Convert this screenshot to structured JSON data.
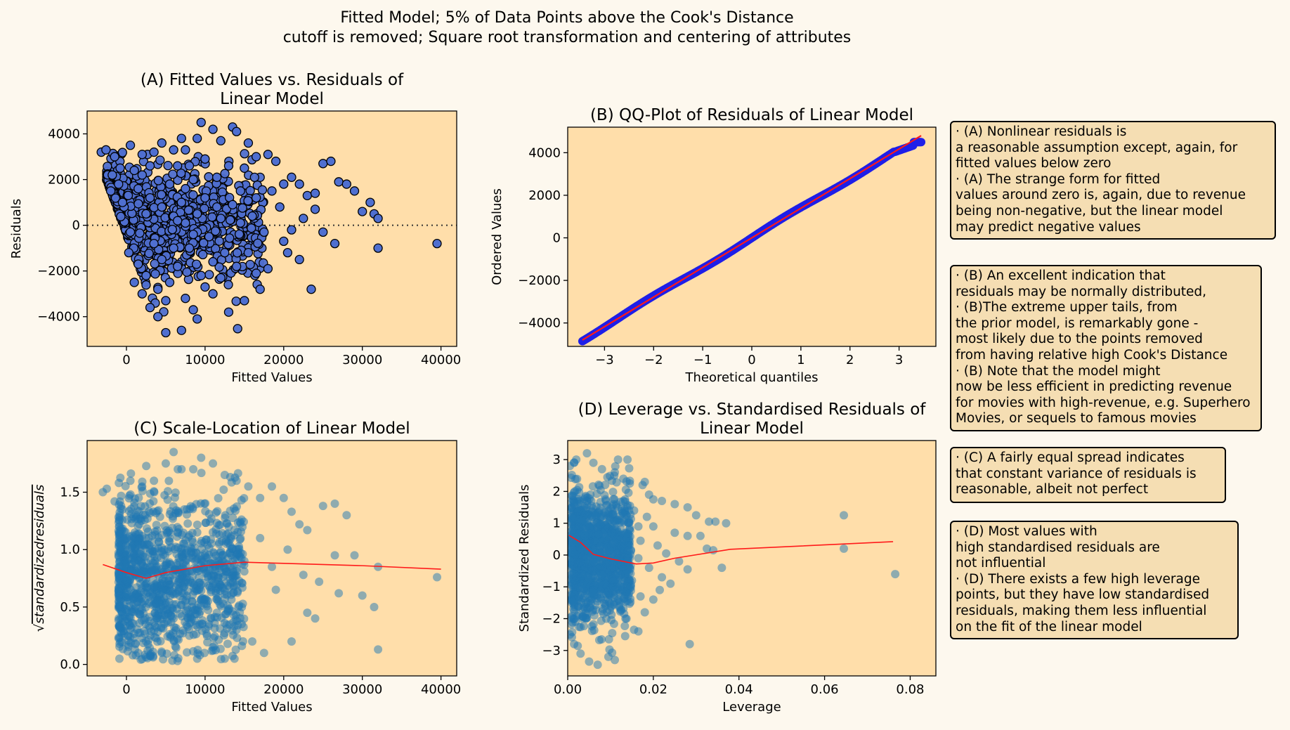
{
  "figure": {
    "suptitle_lines": [
      "Fitted Model; 5% of Data Points above the Cook's Distance",
      "cutoff is removed; Square root transformation and centering of attributes"
    ]
  },
  "colors": {
    "background": "#fdf8ee",
    "axes_face": "#ffdeaa",
    "note_face": "#f5deb3",
    "scatter_blue": "#4f6fd0",
    "qq_blue": "#1f1fe8",
    "tab_blue": "#1f77b4",
    "fit_red": "#ff1a1a"
  },
  "chart_data": [
    {
      "id": "A",
      "type": "scatter",
      "title_lines": [
        "(A) Fitted Values vs. Residuals of",
        "Linear Model"
      ],
      "xlabel": "Fitted Values",
      "ylabel": "Residuals",
      "xlim": [
        -5000,
        42000
      ],
      "ylim": [
        -5300,
        5000
      ],
      "xticks": [
        0,
        10000,
        20000,
        30000,
        40000
      ],
      "xtick_labels": [
        "0",
        "10000",
        "20000",
        "30000",
        "40000"
      ],
      "yticks": [
        -4000,
        -2000,
        0,
        2000,
        4000
      ],
      "ytick_labels": [
        "−4000",
        "−2000",
        "0",
        "2000",
        "4000"
      ],
      "reference_line": {
        "y": 0,
        "style": "dotted"
      },
      "marker": "circle-edged",
      "points": [
        [
          -3200,
          3200
        ],
        [
          -2600,
          3300
        ],
        [
          -1500,
          3000
        ],
        [
          -800,
          2500
        ],
        [
          500,
          3500
        ],
        [
          2000,
          3100
        ],
        [
          3500,
          3200
        ],
        [
          4500,
          3600
        ],
        [
          6000,
          3300
        ],
        [
          7000,
          3800
        ],
        [
          7500,
          3300
        ],
        [
          9000,
          3800
        ],
        [
          9500,
          4500
        ],
        [
          11000,
          4200
        ],
        [
          12000,
          3700
        ],
        [
          13500,
          4300
        ],
        [
          14000,
          4100
        ],
        [
          15500,
          3600
        ],
        [
          16500,
          3000
        ],
        [
          18000,
          3100
        ],
        [
          19000,
          2800
        ],
        [
          20000,
          1800
        ],
        [
          21000,
          2100
        ],
        [
          22000,
          1800
        ],
        [
          23000,
          1300
        ],
        [
          24000,
          1400
        ],
        [
          25000,
          2700
        ],
        [
          26000,
          2800
        ],
        [
          27000,
          1900
        ],
        [
          28000,
          1800
        ],
        [
          29000,
          1500
        ],
        [
          30000,
          600
        ],
        [
          31000,
          1000
        ],
        [
          31500,
          500
        ],
        [
          32000,
          300
        ],
        [
          32000,
          -1000
        ],
        [
          26500,
          -800
        ],
        [
          39500,
          -800
        ],
        [
          23500,
          -2800
        ],
        [
          25000,
          -300
        ],
        [
          22000,
          -1500
        ],
        [
          20000,
          -700
        ],
        [
          18000,
          -1900
        ],
        [
          17000,
          -2800
        ],
        [
          15000,
          -3300
        ],
        [
          13000,
          -3800
        ],
        [
          11000,
          -3000
        ],
        [
          9000,
          -4100
        ],
        [
          7000,
          -4600
        ],
        [
          5000,
          -4700
        ],
        [
          4000,
          -4000
        ],
        [
          3000,
          -3600
        ],
        [
          2000,
          -3000
        ],
        [
          1000,
          -2500
        ],
        [
          300,
          -1200
        ],
        [
          -300,
          800
        ],
        [
          -2000,
          1500
        ],
        [
          -1000,
          1800
        ],
        [
          1500,
          1600
        ],
        [
          3000,
          1200
        ],
        [
          4500,
          800
        ],
        [
          6000,
          400
        ],
        [
          7500,
          100
        ],
        [
          9000,
          -300
        ],
        [
          10500,
          -500
        ],
        [
          12000,
          300
        ],
        [
          13500,
          900
        ],
        [
          14500,
          1500
        ],
        [
          16000,
          400
        ],
        [
          17500,
          -300
        ],
        [
          8500,
          2000
        ],
        [
          10000,
          1200
        ],
        [
          11500,
          2100
        ],
        [
          12500,
          -1200
        ],
        [
          14000,
          -1800
        ],
        [
          5500,
          -2500
        ],
        [
          6500,
          -1800
        ],
        [
          8000,
          -1000
        ],
        [
          9500,
          -2200
        ],
        [
          11000,
          -1600
        ],
        [
          2500,
          500
        ],
        [
          3500,
          -800
        ],
        [
          4500,
          -1500
        ],
        [
          5500,
          1800
        ],
        [
          6500,
          2600
        ],
        [
          7500,
          -3200
        ],
        [
          8500,
          -3700
        ],
        [
          10000,
          2900
        ],
        [
          15000,
          2500
        ],
        [
          16500,
          1200
        ],
        [
          19500,
          800
        ],
        [
          21000,
          -200
        ],
        [
          22500,
          300
        ],
        [
          24000,
          700
        ],
        [
          20500,
          -1200
        ],
        [
          1000,
          2400
        ],
        [
          2000,
          2200
        ],
        [
          3000,
          2600
        ],
        [
          4000,
          -2800
        ],
        [
          5000,
          -3300
        ],
        [
          -1800,
          2200
        ],
        [
          -500,
          1000
        ],
        [
          500,
          -300
        ],
        [
          1500,
          -1700
        ],
        [
          2500,
          -2200
        ],
        [
          7000,
          1000
        ],
        [
          8000,
          2600
        ],
        [
          9000,
          500
        ],
        [
          10000,
          -2700
        ],
        [
          12000,
          -2300
        ],
        [
          13000,
          2600
        ],
        [
          14500,
          100
        ],
        [
          15500,
          -1200
        ],
        [
          16500,
          -2100
        ],
        [
          18500,
          1500
        ],
        [
          6000,
          -1000
        ],
        [
          6500,
          200
        ],
        [
          7500,
          1600
        ],
        [
          8500,
          -400
        ],
        [
          11500,
          800
        ]
      ]
    },
    {
      "id": "B",
      "type": "scatter",
      "title_lines": [
        "(B) QQ-Plot of Residuals of Linear Model"
      ],
      "xlabel": "Theoretical quantiles",
      "ylabel": "Ordered Values",
      "xlim": [
        -3.75,
        3.75
      ],
      "ylim": [
        -5100,
        5200
      ],
      "xticks": [
        -3,
        -2,
        -1,
        0,
        1,
        2,
        3
      ],
      "xtick_labels": [
        "−3",
        "−2",
        "−1",
        "0",
        "1",
        "2",
        "3"
      ],
      "yticks": [
        -4000,
        -2000,
        0,
        2000,
        4000
      ],
      "ytick_labels": [
        "−4000",
        "−2000",
        "0",
        "2000",
        "4000"
      ],
      "fit_line": {
        "x": [
          -3.45,
          3.45
        ],
        "y": [
          -4800,
          4800
        ]
      },
      "points_summary": {
        "x_range": [
          -3.45,
          3.45
        ],
        "y_at_min_x": -4750,
        "y_at_max_x": 4500,
        "note": "points follow the red line closely"
      }
    },
    {
      "id": "C",
      "type": "scatter",
      "title_lines": [
        "(C) Scale-Location of Linear Model"
      ],
      "xlabel": "Fitted Values",
      "ylabel_math": "√standardizedresiduals",
      "xlim": [
        -5000,
        42000
      ],
      "ylim": [
        -0.1,
        1.95
      ],
      "xticks": [
        0,
        10000,
        20000,
        30000,
        40000
      ],
      "xtick_labels": [
        "0",
        "10000",
        "20000",
        "30000",
        "40000"
      ],
      "yticks": [
        0.0,
        0.5,
        1.0,
        1.5
      ],
      "ytick_labels": [
        "0.0",
        "0.5",
        "1.0",
        "1.5"
      ],
      "lowess": {
        "x": [
          -3000,
          0,
          2500,
          5000,
          10000,
          15000,
          20000,
          30000,
          40000
        ],
        "y": [
          0.87,
          0.8,
          0.75,
          0.8,
          0.86,
          0.89,
          0.88,
          0.86,
          0.83
        ]
      },
      "points": [
        [
          -3000,
          1.5
        ],
        [
          -2500,
          1.53
        ],
        [
          -1500,
          1.42
        ],
        [
          -500,
          1.35
        ],
        [
          500,
          1.6
        ],
        [
          2000,
          1.55
        ],
        [
          3500,
          1.6
        ],
        [
          5000,
          1.75
        ],
        [
          6000,
          1.85
        ],
        [
          7000,
          1.7
        ],
        [
          8500,
          1.7
        ],
        [
          9500,
          1.8
        ],
        [
          11000,
          1.75
        ],
        [
          12500,
          1.65
        ],
        [
          14000,
          1.6
        ],
        [
          15500,
          1.55
        ],
        [
          17000,
          1.45
        ],
        [
          18500,
          1.55
        ],
        [
          20000,
          1.45
        ],
        [
          21000,
          1.33
        ],
        [
          22000,
          1.22
        ],
        [
          23000,
          1.17
        ],
        [
          25000,
          1.38
        ],
        [
          26500,
          1.4
        ],
        [
          28000,
          1.3
        ],
        [
          29000,
          0.95
        ],
        [
          30000,
          0.6
        ],
        [
          31500,
          0.5
        ],
        [
          32000,
          0.85
        ],
        [
          32000,
          0.13
        ],
        [
          39500,
          0.76
        ],
        [
          26500,
          0.95
        ],
        [
          23000,
          0.45
        ],
        [
          24000,
          0.4
        ],
        [
          21000,
          0.2
        ],
        [
          19000,
          0.65
        ],
        [
          17500,
          0.1
        ],
        [
          16000,
          0.2
        ],
        [
          14000,
          0.3
        ],
        [
          12500,
          0.05
        ],
        [
          11000,
          0.15
        ],
        [
          9000,
          0.05
        ],
        [
          6500,
          0.03
        ],
        [
          4500,
          0.1
        ],
        [
          3000,
          0.08
        ],
        [
          1500,
          0.1
        ],
        [
          500,
          0.3
        ],
        [
          2500,
          0.2
        ],
        [
          8000,
          0.25
        ],
        [
          10500,
          0.35
        ],
        [
          15000,
          0.9
        ],
        [
          17000,
          1.1
        ],
        [
          18500,
          0.85
        ],
        [
          20500,
          1.0
        ],
        [
          22500,
          0.78
        ],
        [
          24500,
          0.72
        ],
        [
          27000,
          0.62
        ],
        [
          13000,
          1.2
        ],
        [
          11500,
          0.45
        ],
        [
          7500,
          0.55
        ],
        [
          1000,
          0.9
        ],
        [
          -1000,
          0.95
        ],
        [
          0,
          1.1
        ],
        [
          1200,
          1.3
        ],
        [
          3000,
          1.0
        ],
        [
          4500,
          0.7
        ],
        [
          6000,
          0.4
        ],
        [
          9000,
          1.15
        ],
        [
          10000,
          0.95
        ],
        [
          12000,
          0.8
        ]
      ],
      "dense_region": {
        "x_range": [
          -1000,
          14000
        ],
        "y_range": [
          0.05,
          1.7
        ]
      }
    },
    {
      "id": "D",
      "type": "scatter",
      "title_lines": [
        "(D) Leverage vs. Standardised Residuals of",
        "Linear Model"
      ],
      "xlabel": "Leverage",
      "ylabel": "Standardized Residuals",
      "xlim": [
        0.0,
        0.086
      ],
      "ylim": [
        -3.8,
        3.6
      ],
      "xticks": [
        0.0,
        0.02,
        0.04,
        0.06,
        0.08
      ],
      "xtick_labels": [
        "0.00",
        "0.02",
        "0.04",
        "0.06",
        "0.08"
      ],
      "yticks": [
        -3,
        -2,
        -1,
        0,
        1,
        2,
        3
      ],
      "ytick_labels": [
        "−3",
        "−2",
        "−1",
        "0",
        "1",
        "2",
        "3"
      ],
      "lowess": {
        "x": [
          0.0003,
          0.003,
          0.006,
          0.01,
          0.016,
          0.02,
          0.025,
          0.038,
          0.076
        ],
        "y": [
          0.62,
          0.4,
          0.02,
          -0.12,
          -0.28,
          -0.25,
          -0.1,
          0.18,
          0.42
        ]
      },
      "points": [
        [
          0.0005,
          2.8
        ],
        [
          0.002,
          3.0
        ],
        [
          0.0045,
          3.2
        ],
        [
          0.006,
          2.9
        ],
        [
          0.008,
          2.7
        ],
        [
          0.011,
          2.6
        ],
        [
          0.013,
          2.4
        ],
        [
          0.0145,
          2.25
        ],
        [
          0.018,
          2.3
        ],
        [
          0.0175,
          2.2
        ],
        [
          0.019,
          1.9
        ],
        [
          0.02,
          1.75
        ],
        [
          0.022,
          1.7
        ],
        [
          0.025,
          1.6
        ],
        [
          0.028,
          1.5
        ],
        [
          0.03,
          1.25
        ],
        [
          0.033,
          1.05
        ],
        [
          0.0345,
          1.05
        ],
        [
          0.037,
          1.0
        ],
        [
          0.028,
          0.6
        ],
        [
          0.031,
          0.6
        ],
        [
          0.0325,
          0.2
        ],
        [
          0.034,
          0.15
        ],
        [
          0.036,
          -0.4
        ],
        [
          0.0645,
          1.25
        ],
        [
          0.0645,
          0.2
        ],
        [
          0.0765,
          -0.6
        ],
        [
          0.028,
          -0.45
        ],
        [
          0.026,
          -0.2
        ],
        [
          0.024,
          -0.9
        ],
        [
          0.022,
          -0.7
        ],
        [
          0.02,
          -1.4
        ],
        [
          0.018,
          -1.8
        ],
        [
          0.0165,
          -2.4
        ],
        [
          0.0155,
          -2.35
        ],
        [
          0.0285,
          -2.8
        ],
        [
          0.011,
          -3.3
        ],
        [
          0.0095,
          -3.2
        ],
        [
          0.007,
          -3.45
        ],
        [
          0.005,
          -3.35
        ],
        [
          0.003,
          -3.1
        ],
        [
          0.0015,
          -2.8
        ],
        [
          0.0005,
          -2.5
        ],
        [
          0.0135,
          -2.0
        ],
        [
          0.012,
          -1.6
        ],
        [
          0.013,
          1.7
        ],
        [
          0.0155,
          1.4
        ],
        [
          0.0165,
          0.9
        ],
        [
          0.017,
          0.45
        ],
        [
          0.015,
          -0.8
        ],
        [
          0.02,
          0.9
        ],
        [
          0.021,
          0.3
        ],
        [
          0.019,
          -0.4
        ],
        [
          0.023,
          0.05
        ],
        [
          0.025,
          0.7
        ],
        [
          0.0215,
          -1.1
        ],
        [
          0.017,
          -1.3
        ],
        [
          0.014,
          -0.2
        ],
        [
          0.0185,
          1.2
        ],
        [
          0.0165,
          -0.1
        ]
      ],
      "dense_region": {
        "x_range": [
          0.0005,
          0.014
        ],
        "y_range": [
          -2.6,
          2.6
        ]
      }
    }
  ],
  "notes": [
    {
      "id": "note-a",
      "lines": [
        "· (A) Nonlinear residuals is",
        "a reasonable assumption except, again, for",
        "fitted values below zero",
        "· (A) The strange form for fitted",
        "values around zero is, again, due to revenue",
        "being non-negative, but the linear model",
        "may predict negative values"
      ]
    },
    {
      "id": "note-b",
      "lines": [
        "· (B) An excellent indication that",
        "residuals may be normally distributed,",
        "· (B)The extreme upper tails, from",
        "the prior model, is remarkably gone -",
        "most likely due to the points removed",
        "from having relative high Cook's Distance",
        "· (B) Note that the model might",
        "now be less efficient in predicting revenue",
        "for movies with high-revenue, e.g. Superhero",
        "Movies, or sequels to famous movies"
      ]
    },
    {
      "id": "note-c",
      "lines": [
        "· (C) A fairly equal spread indicates",
        "that constant variance of residuals is",
        "reasonable, albeit not perfect"
      ]
    },
    {
      "id": "note-d",
      "lines": [
        "· (D) Most values with",
        "high standardised residuals are",
        "not influential",
        "· (D) There exists a few high leverage",
        "points, but they have low standardised",
        "residuals, making them less influential",
        "on the fit of the linear model"
      ]
    }
  ]
}
